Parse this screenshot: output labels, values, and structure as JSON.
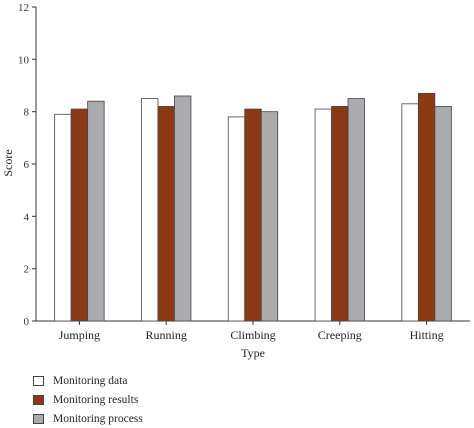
{
  "chart_data": {
    "type": "bar",
    "categories": [
      "Jumping",
      "Running",
      "Climbing",
      "Creeping",
      "Hitting"
    ],
    "series": [
      {
        "name": "Monitoring data",
        "values": [
          7.9,
          8.5,
          7.8,
          8.1,
          8.3
        ],
        "color": "#ffffff"
      },
      {
        "name": "Monitoring results",
        "values": [
          8.1,
          8.2,
          8.1,
          8.2,
          8.7
        ],
        "color": "#8b3a14"
      },
      {
        "name": "Monitoring process",
        "values": [
          8.4,
          8.6,
          8.0,
          8.5,
          8.2
        ],
        "color": "#a9abae"
      }
    ],
    "xlabel": "Type",
    "ylabel": "Score",
    "ylim": [
      0,
      12
    ],
    "yticks": [
      "0",
      "2",
      "4",
      "6",
      "8",
      "10",
      "12"
    ],
    "grid": false,
    "legend_position": "bottom-left"
  }
}
